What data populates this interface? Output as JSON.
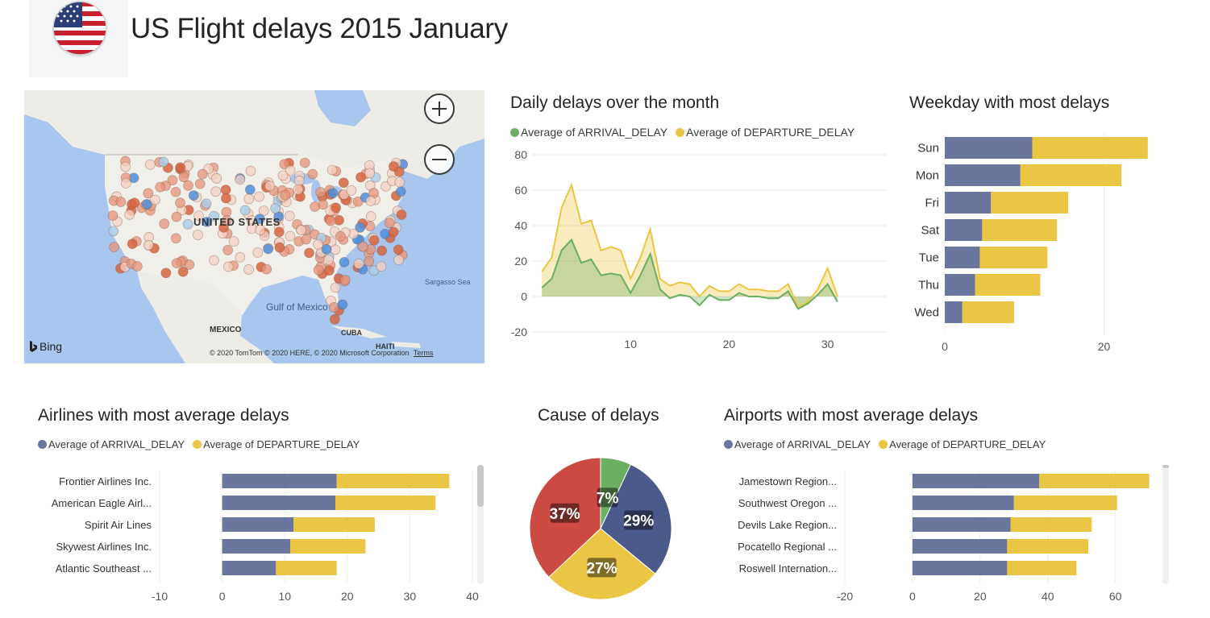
{
  "header": {
    "title": "US Flight delays 2015 January",
    "flag_icon": "us-flag-icon"
  },
  "colors": {
    "arrival": "#6b769e",
    "departure": "#ebc544",
    "line_arrival": "#6ab060",
    "pie_green": "#6ab060",
    "pie_blue": "#4b5a8a",
    "pie_yellow": "#ebc544",
    "pie_red": "#cd4a42"
  },
  "map": {
    "zoom_in_icon": "plus-icon",
    "zoom_out_icon": "minus-icon",
    "labels": {
      "country": "UNITED STATES",
      "gulf": "Gulf of Mexico",
      "mexico": "MEXICO",
      "cuba": "CUBA",
      "haiti": "HAITI",
      "sargasso": "Sargasso Sea"
    },
    "attribution": "© 2020 TomTom © 2020 HERE, © 2020 Microsoft Corporation",
    "terms": "Terms",
    "bing": "Bing"
  },
  "daily": {
    "title": "Daily delays over the month",
    "legend": [
      "Average of ARRIVAL_DELAY",
      "Average of DEPARTURE_DELAY"
    ]
  },
  "weekday": {
    "title": "Weekday with most delays"
  },
  "airlines": {
    "title": "Airlines with most average delays",
    "legend": [
      "Average of ARRIVAL_DELAY",
      "Average of DEPARTURE_DELAY"
    ]
  },
  "cause": {
    "title": "Cause of delays"
  },
  "airports": {
    "title": "Airports with most average delays",
    "legend": [
      "Average of ARRIVAL_DELAY",
      "Average of DEPARTURE_DELAY"
    ]
  },
  "chart_data": [
    {
      "type": "area",
      "title": "Daily delays over the month",
      "x": [
        1,
        2,
        3,
        4,
        5,
        6,
        7,
        8,
        9,
        10,
        11,
        12,
        13,
        14,
        15,
        16,
        17,
        18,
        19,
        20,
        21,
        22,
        23,
        24,
        25,
        26,
        27,
        28,
        29,
        30,
        31
      ],
      "series": [
        {
          "name": "Average of ARRIVAL_DELAY",
          "values": [
            5,
            10,
            26,
            32,
            19,
            21,
            12,
            13,
            12,
            2,
            12,
            24,
            4,
            -1,
            1,
            0,
            -5,
            1,
            -2,
            -2,
            2,
            0,
            0,
            -1,
            -1,
            3,
            -7,
            -4,
            1,
            7,
            -3
          ]
        },
        {
          "name": "Average of DEPARTURE_DELAY",
          "values": [
            14,
            22,
            50,
            63,
            41,
            43,
            26,
            28,
            26,
            10,
            22,
            38,
            10,
            6,
            8,
            7,
            0,
            6,
            3,
            3,
            7,
            4,
            4,
            3,
            3,
            7,
            -6,
            -3,
            4,
            16,
            0
          ]
        }
      ],
      "xlim": [
        0,
        36
      ],
      "ylim": [
        -20,
        80
      ],
      "xticks": [
        10,
        20,
        30
      ],
      "yticks": [
        -20,
        0,
        20,
        40,
        60,
        80
      ]
    },
    {
      "type": "bar",
      "title": "Weekday with most delays",
      "categories": [
        "Sun",
        "Mon",
        "Fri",
        "Sat",
        "Tue",
        "Thu",
        "Wed"
      ],
      "series": [
        {
          "name": "Average of ARRIVAL_DELAY",
          "values": [
            11,
            9.5,
            5.8,
            4.7,
            4.4,
            3.8,
            2.2
          ]
        },
        {
          "name": "Average of DEPARTURE_DELAY",
          "values": [
            14.5,
            12.7,
            9.7,
            9.4,
            8.5,
            8.2,
            6.5
          ]
        }
      ],
      "xlim": [
        0,
        32
      ],
      "xticks": [
        0,
        20
      ]
    },
    {
      "type": "bar",
      "title": "Airlines with most average delays",
      "categories": [
        "Frontier Airlines Inc.",
        "American Eagle Airl...",
        "Spirit Air Lines",
        "Skywest Airlines Inc.",
        "Atlantic Southeast ..."
      ],
      "series": [
        {
          "name": "Average of ARRIVAL_DELAY",
          "values": [
            18.3,
            18.1,
            11.4,
            10.9,
            8.6
          ]
        },
        {
          "name": "Average of DEPARTURE_DELAY",
          "values": [
            18,
            16,
            13,
            12,
            9.7
          ]
        }
      ],
      "xlim": [
        -10,
        40
      ],
      "xticks": [
        -10,
        0,
        10,
        20,
        30,
        40
      ]
    },
    {
      "type": "pie",
      "title": "Cause of delays",
      "values": [
        7,
        29,
        27,
        37
      ],
      "labels": [
        "7%",
        "29%",
        "27%",
        "37%"
      ]
    },
    {
      "type": "bar",
      "title": "Airports with most average delays",
      "categories": [
        "Jamestown Region...",
        "Southwest Oregon ...",
        "Devils Lake Region...",
        "Pocatello Regional ...",
        "Roswell Internation..."
      ],
      "series": [
        {
          "name": "Average of ARRIVAL_DELAY",
          "values": [
            37.5,
            30,
            29,
            28,
            28
          ]
        },
        {
          "name": "Average of DEPARTURE_DELAY",
          "values": [
            32.5,
            30.5,
            24,
            24,
            20.5
          ]
        }
      ],
      "xlim": [
        -20,
        72
      ],
      "xticks": [
        -20,
        0,
        20,
        40,
        60
      ]
    }
  ]
}
